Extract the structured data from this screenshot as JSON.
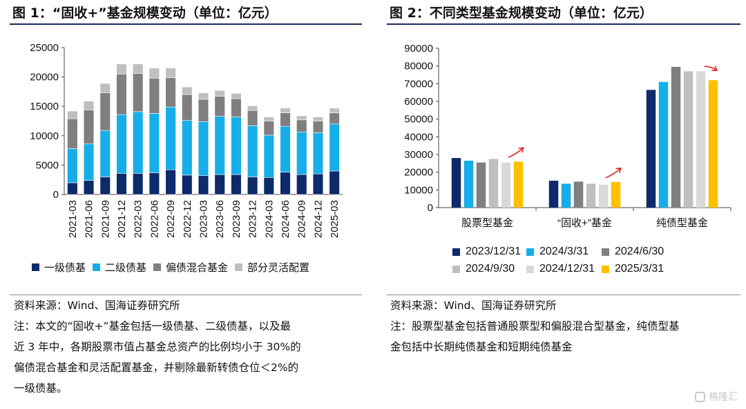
{
  "figure1": {
    "title": "图 1：“固收+”基金规模变动（单位：亿元）",
    "source": "资料来源：Wind、国海证券研究所",
    "note_lines": [
      "注：本文的“固收+”基金包括一级债基、二级债基，以及最",
      "近 3 年中，各期股票市值占基金总资产的比例均小于 30%的",
      "偏债混合基金和灵活配置基金，并剔除最新转债仓位＜2%的",
      "一级债基。"
    ],
    "chart_data": {
      "type": "bar",
      "stacked": true,
      "categories": [
        "2021-03",
        "2021-06",
        "2021-09",
        "2021-12",
        "2022-03",
        "2022-06",
        "2022-09",
        "2022-12",
        "2023-03",
        "2023-06",
        "2023-09",
        "2023-12",
        "2024-03",
        "2024-06",
        "2024-09",
        "2024-12",
        "2025-03"
      ],
      "ylim": [
        0,
        25000
      ],
      "yticks": [
        0,
        5000,
        10000,
        15000,
        20000,
        25000
      ],
      "legend_position": "bottom",
      "series": [
        {
          "name": "一级债基",
          "color": "#0d2a6b",
          "values": [
            2000,
            2400,
            3000,
            3600,
            3600,
            3700,
            4200,
            3300,
            3200,
            3400,
            3400,
            3000,
            2900,
            3800,
            3400,
            3500,
            4000
          ]
        },
        {
          "name": "二级债基",
          "color": "#16aee8",
          "values": [
            5800,
            6200,
            7900,
            10000,
            10500,
            10100,
            10700,
            9300,
            9200,
            9900,
            9800,
            8700,
            7200,
            7800,
            7200,
            7000,
            8000
          ]
        },
        {
          "name": "偏债混合基金",
          "color": "#7f7f7f",
          "values": [
            5100,
            5800,
            6400,
            6900,
            6500,
            6000,
            5000,
            4400,
            3800,
            3400,
            3100,
            2600,
            2400,
            2300,
            2100,
            2000,
            1900
          ]
        },
        {
          "name": "部分灵活配置",
          "color": "#bfbfbf",
          "values": [
            1300,
            1500,
            1600,
            1700,
            1600,
            1700,
            1600,
            1300,
            1100,
            1000,
            900,
            800,
            700,
            800,
            700,
            700,
            800
          ]
        }
      ]
    }
  },
  "figure2": {
    "title": "图 2：不同类型基金规模变动（单位：亿元）",
    "source": "资料来源：Wind、国海证券研究所",
    "note_lines": [
      "注：股票型基金包括普通股票型和偏股混合型基金，纯债型基",
      "金包括中长期纯债基金和短期纯债基金"
    ],
    "chart_data": {
      "type": "bar",
      "categories": [
        "股票型基金",
        "“固收+”基金",
        "纯债型基金"
      ],
      "ylim": [
        0,
        90000
      ],
      "yticks": [
        0,
        10000,
        20000,
        30000,
        40000,
        50000,
        60000,
        70000,
        80000,
        90000
      ],
      "legend_position": "bottom",
      "annotations": [
        "red-arrow-up",
        "red-arrow-up",
        "red-arrow-down"
      ],
      "series": [
        {
          "name": "2023/12/31",
          "color": "#0d2a6b",
          "values": [
            28000,
            15200,
            66500
          ]
        },
        {
          "name": "2024/3/31",
          "color": "#16aee8",
          "values": [
            26500,
            13500,
            71000
          ]
        },
        {
          "name": "2024/6/30",
          "color": "#7f7f7f",
          "values": [
            25500,
            14700,
            79500
          ]
        },
        {
          "name": "2024/9/30",
          "color": "#bfbfbf",
          "values": [
            27500,
            13500,
            77000
          ]
        },
        {
          "name": "2024/12/31",
          "color": "#d9d9d9",
          "values": [
            25500,
            13000,
            77000
          ]
        },
        {
          "name": "2025/3/31",
          "color": "#ffc000",
          "values": [
            26000,
            14500,
            72000
          ]
        }
      ]
    }
  },
  "watermark": "格隆汇"
}
